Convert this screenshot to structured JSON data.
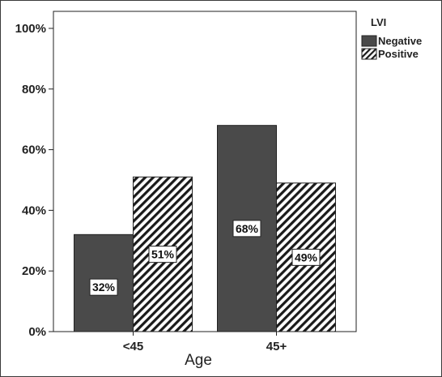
{
  "chart_data": {
    "type": "bar",
    "categories": [
      "<45",
      "45+"
    ],
    "series": [
      {
        "name": "Negative",
        "values": [
          32,
          68
        ],
        "labels": [
          "32%",
          "68%"
        ],
        "color": "#4a4a4a",
        "pattern": "solid"
      },
      {
        "name": "Positive",
        "values": [
          51,
          49
        ],
        "labels": [
          "51%",
          "49%"
        ],
        "color": "#ffffff",
        "pattern": "diagonal-hatch"
      }
    ],
    "xlabel": "Age",
    "ylabel": "",
    "ylim": [
      0,
      100
    ],
    "yticks": [
      "0%",
      "20%",
      "40%",
      "60%",
      "80%",
      "100%"
    ],
    "legend": {
      "title": "LVI",
      "position": "top-right"
    },
    "grid": false
  }
}
